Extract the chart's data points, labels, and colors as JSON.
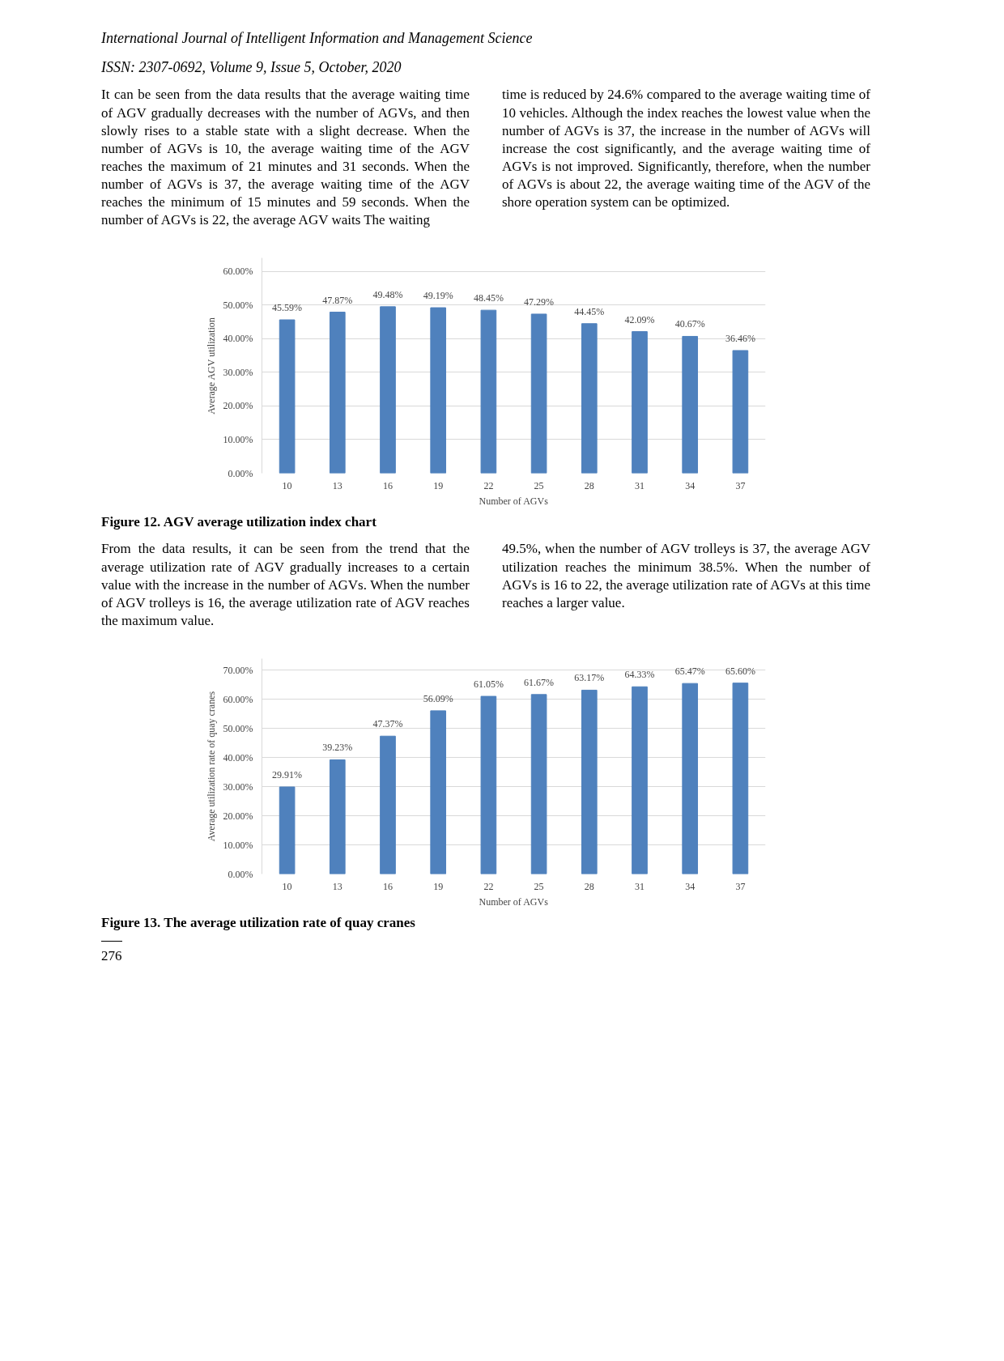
{
  "chart_data": [
    {
      "type": "bar",
      "title": "Figure 12. AGV average utilization index chart",
      "xlabel": "Number of AGVs",
      "ylabel": "Average AGV utilization",
      "categories": [
        "10",
        "13",
        "16",
        "19",
        "22",
        "25",
        "28",
        "31",
        "34",
        "37"
      ],
      "series": [
        {
          "color": "#4f81bd",
          "values": [
            45.59,
            47.87,
            49.48,
            49.19,
            48.45,
            47.29,
            44.45,
            42.09,
            40.67,
            36.46
          ],
          "value_labels": [
            "45.59%",
            "47.87%",
            "49.48%",
            "49.19%",
            "48.45%",
            "47.29%",
            "44.45%",
            "42.09%",
            "40.67%",
            "36.46%"
          ]
        }
      ],
      "ylim": [
        0,
        64
      ],
      "yticks": [
        {
          "value": 0,
          "label": "0.00%"
        },
        {
          "value": 10,
          "label": "10.00%"
        },
        {
          "value": 20,
          "label": "20.00%"
        },
        {
          "value": 30,
          "label": "30.00%"
        },
        {
          "value": 40,
          "label": "40.00%"
        },
        {
          "value": 50,
          "label": "50.00%"
        },
        {
          "value": 60,
          "label": "60.00%"
        }
      ],
      "grid": "y",
      "annotations": [
        "International Journal of Intelligent Information and Management Science",
        "ISSN: 2307-0692, Volume 9, Issue 5, October, 2020",
        "It can be seen from the data results that the average waiting time of AGV gradually decreases with the number of AGVs, and then slowly rises to a stable state with a slight decrease. When the number of AGVs is 10, the average waiting time of the AGV reaches the maximum of 21 minutes and 31 seconds. When the number of AGVs is 37, the average waiting time of the AGV reaches the minimum of 15 minutes and 59 seconds. When the number of AGVs is 22, the average AGV waits The waiting",
        "time is reduced by 24.6% compared to the average waiting time of 10 vehicles. Although the index reaches the lowest value when the number of AGVs is 37, the increase in the number of AGVs will increase the cost significantly, and the average waiting time of AGVs is not improved. Significantly, therefore, when the number of AGVs is about 22, the average waiting time of the AGV of the shore operation system can be optimized."
      ]
    },
    {
      "type": "bar",
      "title": "Figure 13. The average utilization rate of quay cranes",
      "xlabel": "Number of AGVs",
      "ylabel": "Average utilization rate of quay cranes",
      "categories": [
        "10",
        "13",
        "16",
        "19",
        "22",
        "25",
        "28",
        "31",
        "34",
        "37"
      ],
      "series": [
        {
          "color": "#4f81bd",
          "values": [
            29.91,
            39.23,
            47.37,
            56.09,
            61.05,
            61.67,
            63.17,
            64.33,
            65.47,
            65.6
          ],
          "value_labels": [
            "29.91%",
            "39.23%",
            "47.37%",
            "56.09%",
            "61.05%",
            "61.67%",
            "63.17%",
            "64.33%",
            "65.47%",
            "65.60%"
          ]
        }
      ],
      "ylim": [
        0,
        74
      ],
      "yticks": [
        {
          "value": 0,
          "label": "0.00%"
        },
        {
          "value": 10,
          "label": "10.00%"
        },
        {
          "value": 20,
          "label": "20.00%"
        },
        {
          "value": 30,
          "label": "30.00%"
        },
        {
          "value": 40,
          "label": "40.00%"
        },
        {
          "value": 50,
          "label": "50.00%"
        },
        {
          "value": 60,
          "label": "60.00%"
        },
        {
          "value": 70,
          "label": "70.00%"
        }
      ],
      "grid": "y",
      "annotations": [
        "From the data results, it can be seen from the trend that the average utilization rate of AGV gradually increases to a certain value with the increase in the number of AGVs. When the number of AGV trolleys is 16, the average utilization rate of AGV reaches the maximum value.",
        "49.5%, when the number of AGV trolleys is 37, the average AGV utilization reaches the minimum 38.5%. When the number of AGVs is 16 to 22, the average utilization rate of AGVs at this time reaches a larger value.",
        "276"
      ]
    }
  ]
}
